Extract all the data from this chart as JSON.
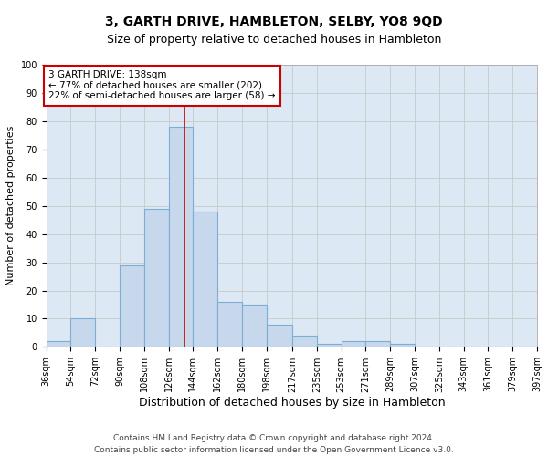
{
  "title1": "3, GARTH DRIVE, HAMBLETON, SELBY, YO8 9QD",
  "title2": "Size of property relative to detached houses in Hambleton",
  "xlabel": "Distribution of detached houses by size in Hambleton",
  "ylabel": "Number of detached properties",
  "bin_edges": [
    36,
    54,
    72,
    90,
    108,
    126,
    144,
    162,
    180,
    198,
    217,
    235,
    253,
    271,
    289,
    307,
    325,
    343,
    361,
    379,
    397
  ],
  "bar_heights": [
    2,
    10,
    0,
    29,
    49,
    78,
    48,
    16,
    15,
    8,
    4,
    1,
    2,
    2,
    1,
    0,
    0,
    0,
    0,
    0
  ],
  "bar_color": "#c8d8ec",
  "bar_edgecolor": "#7aaed4",
  "property_size": 138,
  "red_line_color": "#cc0000",
  "annotation_line1": "3 GARTH DRIVE: 138sqm",
  "annotation_line2": "← 77% of detached houses are smaller (202)",
  "annotation_line3": "22% of semi-detached houses are larger (58) →",
  "annotation_box_color": "#ffffff",
  "annotation_box_edgecolor": "#cc0000",
  "ylim": [
    0,
    100
  ],
  "yticks": [
    0,
    10,
    20,
    30,
    40,
    50,
    60,
    70,
    80,
    90,
    100
  ],
  "grid_color": "#c8c8c8",
  "background_color": "#dce8f4",
  "footer1": "Contains HM Land Registry data © Crown copyright and database right 2024.",
  "footer2": "Contains public sector information licensed under the Open Government Licence v3.0.",
  "title1_fontsize": 10,
  "title2_fontsize": 9,
  "xlabel_fontsize": 9,
  "ylabel_fontsize": 8,
  "tick_fontsize": 7,
  "footer_fontsize": 6.5,
  "annotation_fontsize": 7.5
}
